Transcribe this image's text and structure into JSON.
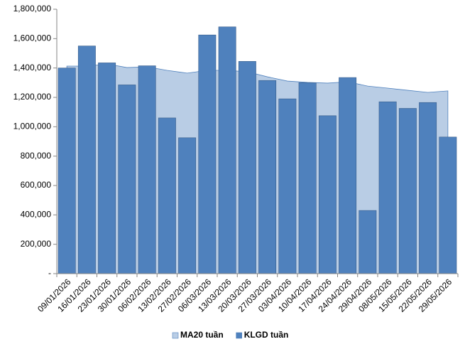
{
  "chart_data": {
    "type": "bar",
    "categories": [
      "09/01/2026",
      "16/01/2026",
      "23/01/2026",
      "30/01/2026",
      "06/02/2026",
      "13/02/2026",
      "27/02/2026",
      "06/03/2026",
      "13/03/2026",
      "20/03/2026",
      "27/03/2026",
      "03/04/2026",
      "10/04/2026",
      "17/04/2026",
      "24/04/2026",
      "29/04/2026",
      "08/05/2026",
      "15/05/2026",
      "22/05/2026",
      "29/05/2026"
    ],
    "series": [
      {
        "name": "MA20 tuần",
        "type": "area",
        "color": "#b9cde5",
        "values": [
          1413000,
          1413000,
          1428000,
          1403000,
          1408000,
          1384000,
          1365000,
          1384000,
          1384000,
          1374000,
          1340000,
          1311000,
          1302000,
          1297000,
          1306000,
          1277000,
          1263000,
          1248000,
          1234000,
          1244000
        ]
      },
      {
        "name": "KLGD tuần",
        "type": "bar",
        "color": "#4f81bd",
        "values": [
          1400000,
          1550000,
          1435000,
          1285000,
          1415000,
          1060000,
          925000,
          1625000,
          1680000,
          1445000,
          1315000,
          1190000,
          1300000,
          1075000,
          1335000,
          430000,
          1170000,
          1125000,
          1165000,
          930000
        ]
      }
    ],
    "ylim": [
      0,
      1800000
    ],
    "yticks": [
      {
        "value": 0,
        "label": "-"
      },
      {
        "value": 200000,
        "label": "200,000"
      },
      {
        "value": 400000,
        "label": "400,000"
      },
      {
        "value": 600000,
        "label": "600,000"
      },
      {
        "value": 800000,
        "label": "800,000"
      },
      {
        "value": 1000000,
        "label": "1,000,000"
      },
      {
        "value": 1200000,
        "label": "1,200,000"
      },
      {
        "value": 1400000,
        "label": "1,400,000"
      },
      {
        "value": 1600000,
        "label": "1,600,000"
      },
      {
        "value": 1800000,
        "label": "1,800,000"
      }
    ],
    "grid": false,
    "legend": "bottom"
  }
}
